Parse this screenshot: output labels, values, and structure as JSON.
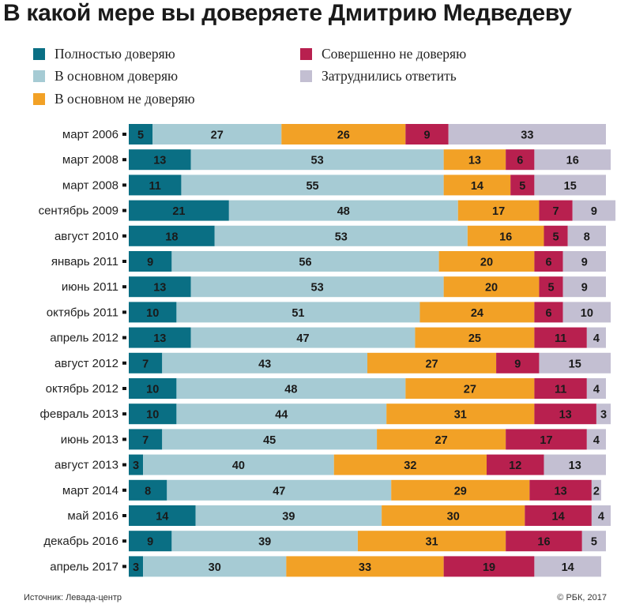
{
  "title": "В какой мере вы доверяете Дмитрию Медведеву",
  "source": "Источник: Левада-центр",
  "copyright": "© РБК, 2017",
  "chart_data": {
    "type": "bar",
    "orientation": "horizontal",
    "stacked": true,
    "title": "В какой мере вы доверяете Дмитрию Медведеву",
    "xlabel": "",
    "ylabel": "",
    "legend_position": "top",
    "categories": [
      "март 2006",
      "март 2008",
      "март 2008",
      "сентябрь 2009",
      "август 2010",
      "январь 2011",
      "июнь 2011",
      "октябрь 2011",
      "апрель 2012",
      "август 2012",
      "октябрь 2012",
      "февраль 2013",
      "июнь 2013",
      "август 2013",
      "март 2014",
      "май 2016",
      "декабрь 2016",
      "апрель 2017"
    ],
    "series": [
      {
        "name": "Полностью доверяю",
        "color": "#0a6f84",
        "values": [
          5,
          13,
          11,
          21,
          18,
          9,
          13,
          10,
          13,
          7,
          10,
          10,
          7,
          3,
          8,
          14,
          9,
          3
        ]
      },
      {
        "name": "В основном доверяю",
        "color": "#a6cbd4",
        "values": [
          27,
          53,
          55,
          48,
          53,
          56,
          53,
          51,
          47,
          43,
          48,
          44,
          45,
          40,
          47,
          39,
          39,
          30
        ]
      },
      {
        "name": "В основном не доверяю",
        "color": "#f2a126",
        "values": [
          26,
          13,
          14,
          17,
          16,
          20,
          20,
          24,
          25,
          27,
          27,
          31,
          27,
          32,
          29,
          30,
          31,
          33
        ]
      },
      {
        "name": "Совершенно не доверяю",
        "color": "#b8204f",
        "values": [
          9,
          6,
          5,
          7,
          5,
          6,
          5,
          6,
          11,
          9,
          11,
          13,
          17,
          12,
          13,
          14,
          16,
          19
        ]
      },
      {
        "name": "Затруднились ответить",
        "color": "#c3bfd2",
        "values": [
          33,
          16,
          15,
          9,
          8,
          9,
          9,
          10,
          4,
          15,
          4,
          3,
          4,
          13,
          2,
          4,
          5,
          14
        ]
      }
    ]
  }
}
